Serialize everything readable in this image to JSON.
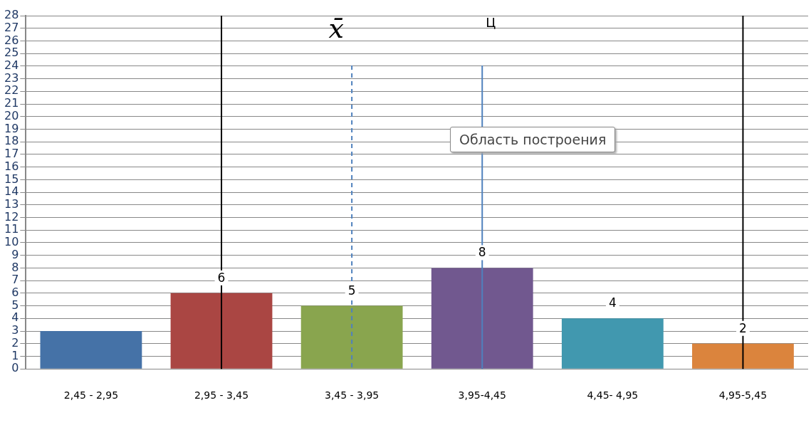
{
  "chart_data": {
    "type": "bar",
    "categories": [
      "2,45 - 2,95",
      "2,95 - 3,45",
      "3,45 - 3,95",
      "3,95-4,45",
      "4,45- 4,95",
      "4,95-5,45"
    ],
    "values": [
      3,
      6,
      5,
      8,
      4,
      2
    ],
    "colors": [
      "#4572a7",
      "#aa4643",
      "#89a54e",
      "#71588f",
      "#4198af",
      "#db843d"
    ],
    "value_labels": [
      null,
      "6",
      "5",
      "8",
      "4",
      "2"
    ],
    "ylim": [
      0,
      28
    ],
    "yticks": [
      0,
      1,
      2,
      3,
      4,
      5,
      6,
      7,
      8,
      9,
      10,
      11,
      12,
      13,
      14,
      15,
      16,
      17,
      18,
      19,
      20,
      21,
      22,
      23,
      24,
      25,
      26,
      27,
      28
    ],
    "grid": "y",
    "legend": false,
    "ref_lines": [
      {
        "axis": "x",
        "value": "2,95 - 3,45",
        "color": "#000000"
      },
      {
        "axis": "x",
        "value": "3,45 - 3,95",
        "label": "x̄",
        "color": "#4f81bd",
        "line_style": "dashed"
      },
      {
        "axis": "x",
        "value": "3,95-4,45",
        "label": "Ц",
        "color": "#4f81bd"
      },
      {
        "axis": "x",
        "value": "4,95-5,45",
        "color": "#000000"
      }
    ],
    "annotations": [
      "Область построения"
    ]
  }
}
